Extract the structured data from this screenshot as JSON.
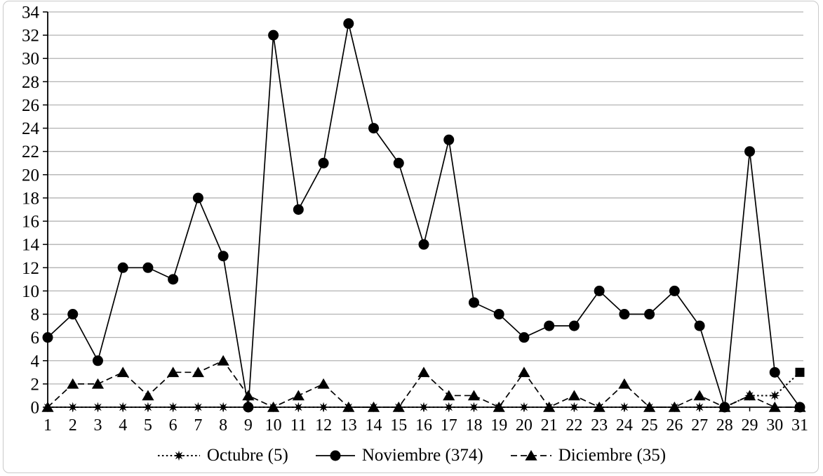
{
  "chart_data": {
    "type": "line",
    "title": "",
    "xlabel": "",
    "ylabel": "",
    "categories": [
      1,
      2,
      3,
      4,
      5,
      6,
      7,
      8,
      9,
      10,
      11,
      12,
      13,
      14,
      15,
      16,
      17,
      18,
      19,
      20,
      21,
      22,
      23,
      24,
      25,
      26,
      27,
      28,
      29,
      30,
      31
    ],
    "ylim": [
      0,
      34
    ],
    "ytick_step": 2,
    "grid": "horizontal",
    "legend_position": "bottom",
    "series": [
      {
        "name": "Octubre",
        "label": "Octubre (5)",
        "total_shown": 5,
        "marker": "star8",
        "end_marker": "square",
        "line_style": "dotted",
        "color": "#000000",
        "values": [
          0,
          0,
          0,
          0,
          0,
          0,
          0,
          0,
          0,
          0,
          0,
          0,
          0,
          0,
          0,
          0,
          0,
          0,
          0,
          0,
          0,
          0,
          0,
          0,
          0,
          0,
          0,
          0,
          1,
          1,
          3
        ]
      },
      {
        "name": "Noviembre",
        "label": "Noviembre (374)",
        "total_shown": 374,
        "marker": "circle",
        "line_style": "solid",
        "color": "#000000",
        "values": [
          6,
          8,
          4,
          12,
          12,
          11,
          18,
          13,
          0,
          32,
          17,
          21,
          33,
          24,
          21,
          14,
          23,
          9,
          8,
          6,
          7,
          7,
          10,
          8,
          8,
          10,
          7,
          0,
          22,
          3,
          0
        ]
      },
      {
        "name": "Diciembre",
        "label": "Diciembre (35)",
        "total_shown": 35,
        "marker": "triangle",
        "line_style": "dashed",
        "color": "#000000",
        "values": [
          0,
          2,
          2,
          3,
          1,
          3,
          3,
          4,
          1,
          0,
          1,
          2,
          0,
          0,
          0,
          3,
          1,
          1,
          0,
          3,
          0,
          1,
          0,
          2,
          0,
          0,
          1,
          0,
          1,
          0,
          0
        ]
      }
    ],
    "colors": {
      "series": "#000000",
      "axis": "#000000",
      "gridline": "#b3b3b3",
      "background": "#ffffff",
      "frame_border": "#c9c9c9"
    }
  }
}
